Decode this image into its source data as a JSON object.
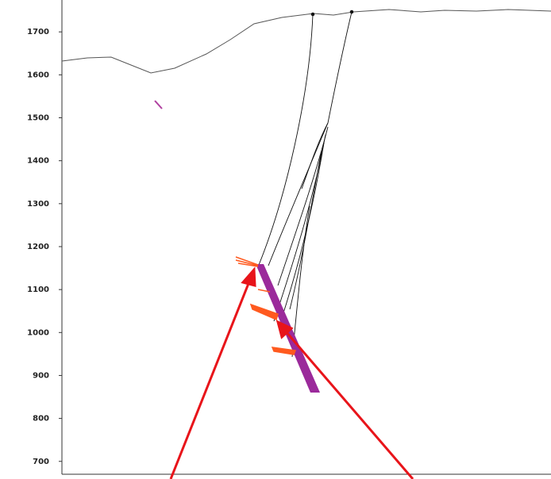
{
  "chart_data": {
    "type": "section",
    "ylim": [
      670,
      1765
    ],
    "yticks": [
      700,
      800,
      900,
      1000,
      1100,
      1200,
      1300,
      1400,
      1500,
      1600,
      1700
    ]
  }
}
